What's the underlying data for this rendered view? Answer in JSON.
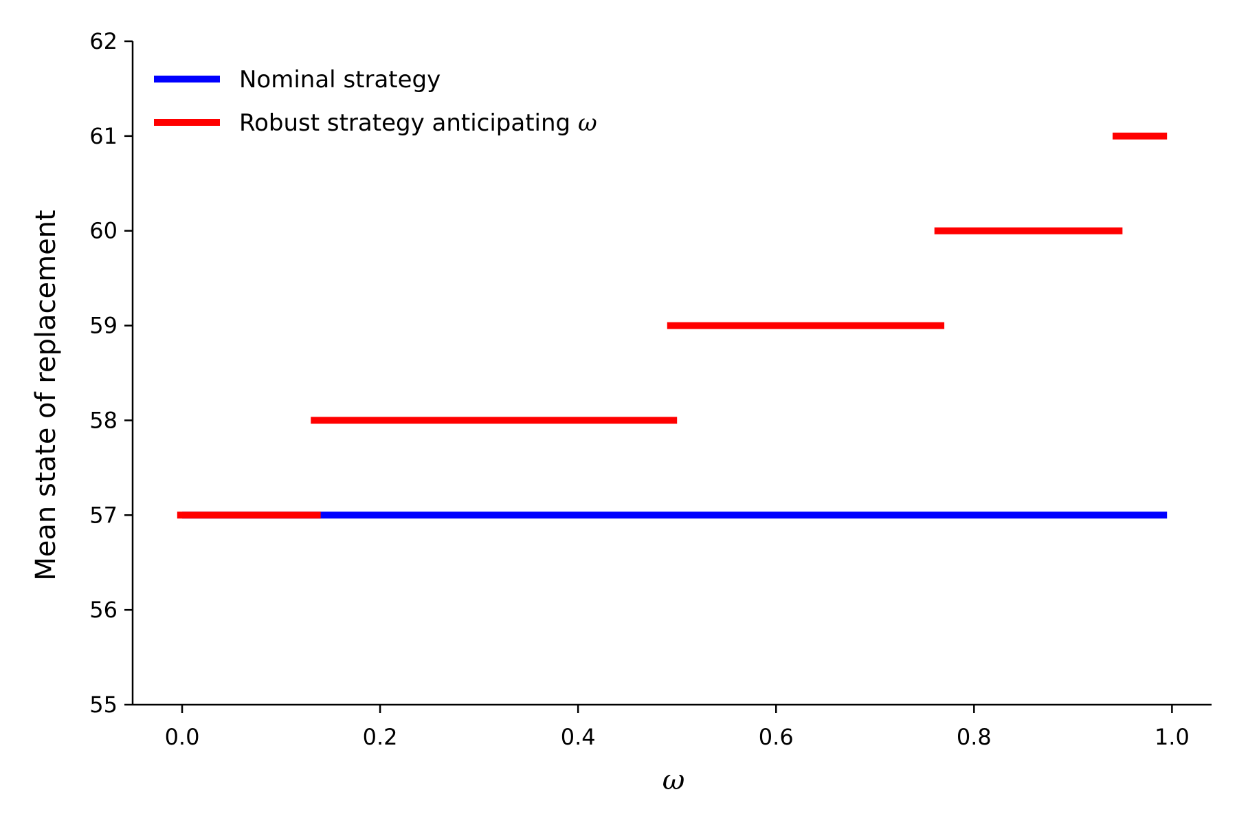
{
  "chart_data": {
    "type": "line",
    "title": "",
    "xlabel": "ω",
    "ylabel": "Mean state of replacement",
    "xlim": [
      -0.05,
      1.04
    ],
    "ylim": [
      55,
      62
    ],
    "xticks": [
      0.0,
      0.2,
      0.4,
      0.6,
      0.8,
      1.0
    ],
    "xtick_labels": [
      "0.0",
      "0.2",
      "0.4",
      "0.6",
      "0.8",
      "1.0"
    ],
    "yticks": [
      55,
      56,
      57,
      58,
      59,
      60,
      61,
      62
    ],
    "ytick_labels": [
      "55",
      "56",
      "57",
      "58",
      "59",
      "60",
      "61",
      "62"
    ],
    "grid": false,
    "legend_position": "top-left",
    "series": [
      {
        "name": "Nominal strategy",
        "legend_prefix": "Nominal strategy",
        "legend_symbol": "",
        "color": "#0000ff",
        "segments": [
          {
            "x": [
              0.0,
              0.995
            ],
            "y": 57
          }
        ]
      },
      {
        "name": "Robust strategy anticipating ω",
        "legend_prefix": "Robust strategy anticipating ",
        "legend_symbol": "ω",
        "color": "#ff0000",
        "segments": [
          {
            "x": [
              -0.005,
              0.14
            ],
            "y": 57
          },
          {
            "x": [
              0.13,
              0.5
            ],
            "y": 58
          },
          {
            "x": [
              0.49,
              0.77
            ],
            "y": 59
          },
          {
            "x": [
              0.76,
              0.95
            ],
            "y": 60
          },
          {
            "x": [
              0.94,
              0.995
            ],
            "y": 61
          }
        ]
      }
    ]
  }
}
